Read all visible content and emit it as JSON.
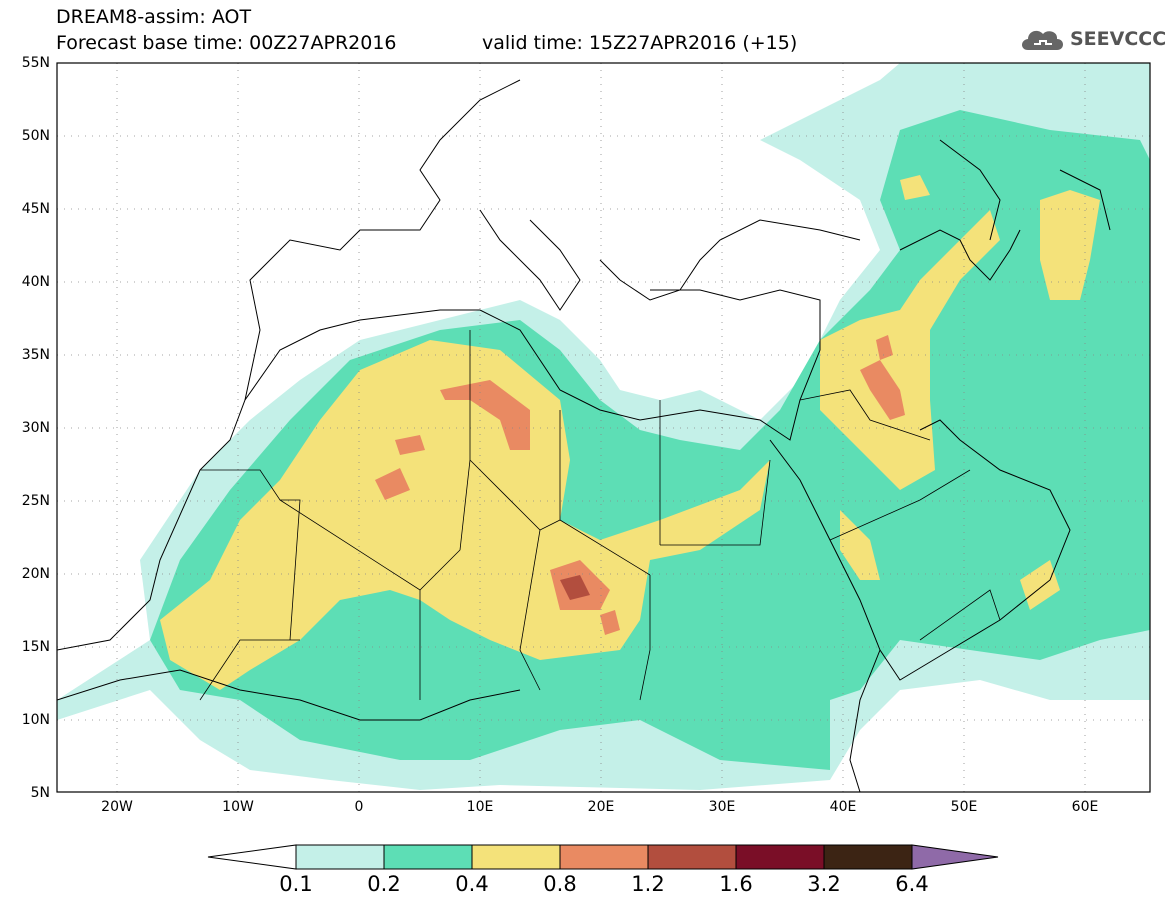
{
  "header": {
    "title_line1": "DREAM8-assim: AOT",
    "forecast_base": "Forecast base time: 00Z27APR2016",
    "valid_time": "valid time: 15Z27APR2016 (+15)",
    "logo_text": "SEEVCCC"
  },
  "map": {
    "lat_ticks": [
      "55N",
      "50N",
      "45N",
      "40N",
      "35N",
      "30N",
      "25N",
      "20N",
      "15N",
      "10N",
      "5N"
    ],
    "lon_ticks": [
      "20W",
      "10W",
      "0",
      "10E",
      "20E",
      "30E",
      "40E",
      "50E",
      "60E"
    ],
    "lon_range": [
      -25,
      65
    ],
    "lat_range": [
      5,
      55
    ]
  },
  "legend": {
    "levels": [
      "0.1",
      "0.2",
      "0.4",
      "0.8",
      "1.2",
      "1.6",
      "3.2",
      "6.4"
    ],
    "colors": [
      "#ffffff",
      "#c4f0e8",
      "#5ddeb5",
      "#f4e27a",
      "#e98a62",
      "#b24e3e",
      "#7a0e27",
      "#3c2414",
      "#8f6aa8"
    ]
  }
}
